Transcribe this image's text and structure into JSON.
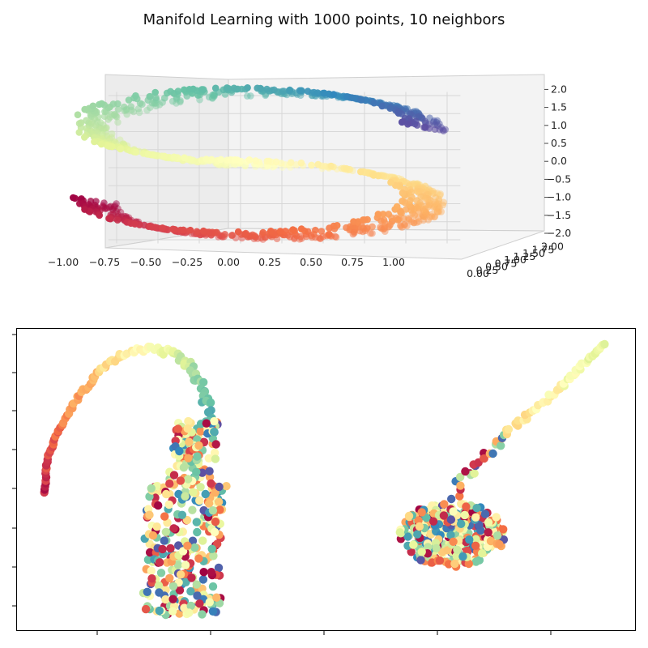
{
  "figure": {
    "title": "Manifold Learning with 1000 points, 10 neighbors"
  },
  "chart_data": [
    {
      "type": "scatter",
      "projection": "3d",
      "title": "",
      "n_points": 1000,
      "colormap": "Spectral",
      "x_ticks": [
        "−1.00",
        "−0.75",
        "−0.50",
        "−0.25",
        "0.00",
        "0.25",
        "0.50",
        "0.75",
        "1.00"
      ],
      "y_ticks": [
        "0.00",
        "0.25",
        "0.50",
        "0.75",
        "1.00",
        "1.25",
        "1.50",
        "1.75",
        "2.00"
      ],
      "z_ticks": [
        "−2.0",
        "−1.5",
        "−1.0",
        "−0.5",
        "0.0",
        "0.5",
        "1.0",
        "1.5",
        "2.0"
      ],
      "xlim": [
        -1,
        1
      ],
      "ylim": [
        0,
        2
      ],
      "zlim": [
        -2,
        2
      ],
      "grid": true,
      "shape": "S-curve"
    },
    {
      "type": "scatter",
      "projection": "2d",
      "title": "",
      "colormap": "Spectral",
      "clusters": [
        {
          "region": "left",
          "shape": "hook / curled arm"
        },
        {
          "region": "right",
          "shape": "blob with tail toward top-right"
        }
      ],
      "tick_labels_hidden": true
    }
  ],
  "colors": {
    "spectral": [
      "#9e0142",
      "#d53e4f",
      "#f46d43",
      "#fdae61",
      "#fee08b",
      "#ffffbf",
      "#e6f598",
      "#abdda4",
      "#66c2a5",
      "#3288bd",
      "#5e4fa2"
    ]
  }
}
